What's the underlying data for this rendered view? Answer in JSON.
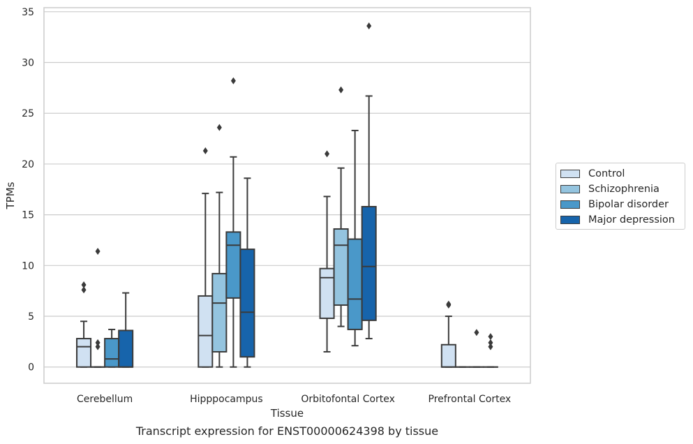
{
  "chart_data": {
    "type": "box",
    "title": "",
    "caption": "Transcript expression for ENST00000624398 by tissue",
    "xlabel": "Tissue",
    "ylabel": "TPMs",
    "ylim": [
      -1.6,
      35.4
    ],
    "yticks": [
      0,
      5,
      10,
      15,
      20,
      25,
      30,
      35
    ],
    "grid": "horizontal",
    "legend_position": "right",
    "categories": [
      "Cerebellum",
      "Hipppocampus",
      "Orbitofontal Cortex",
      "Prefrontal Cortex"
    ],
    "series": [
      {
        "name": "Control",
        "color": "#d0e1f2",
        "boxes": [
          {
            "whislo": 0,
            "q1": 0,
            "med": 2.0,
            "q3": 2.8,
            "whishi": 4.5,
            "fliers": [
              7.6,
              8.1
            ]
          },
          {
            "whislo": 0,
            "q1": 0,
            "med": 3.1,
            "q3": 7.0,
            "whishi": 17.1,
            "fliers": [
              21.3
            ]
          },
          {
            "whislo": 1.5,
            "q1": 4.8,
            "med": 8.8,
            "q3": 9.7,
            "whishi": 16.8,
            "fliers": [
              21.0
            ]
          },
          {
            "whislo": 0,
            "q1": 0,
            "med": 0,
            "q3": 2.2,
            "whishi": 5.0,
            "fliers": [
              6.1,
              6.2
            ]
          }
        ]
      },
      {
        "name": "Schizophrenia",
        "color": "#94c4df",
        "boxes": [
          {
            "whislo": 0,
            "q1": 0,
            "med": 0,
            "q3": 0,
            "whishi": 0,
            "fliers": [
              2.0,
              2.4,
              11.4
            ]
          },
          {
            "whislo": 0,
            "q1": 1.5,
            "med": 6.3,
            "q3": 9.2,
            "whishi": 17.2,
            "fliers": [
              23.6
            ]
          },
          {
            "whislo": 4.0,
            "q1": 6.1,
            "med": 12.0,
            "q3": 13.6,
            "whishi": 19.6,
            "fliers": [
              27.3
            ]
          },
          {
            "whislo": 0,
            "q1": 0,
            "med": 0,
            "q3": 0,
            "whishi": 0,
            "fliers": []
          }
        ]
      },
      {
        "name": "Bipolar disorder",
        "color": "#4a98c9",
        "boxes": [
          {
            "whislo": 0,
            "q1": 0,
            "med": 0.8,
            "q3": 2.8,
            "whishi": 3.7,
            "fliers": []
          },
          {
            "whislo": 0,
            "q1": 6.8,
            "med": 12.0,
            "q3": 13.3,
            "whishi": 20.7,
            "fliers": [
              28.2
            ]
          },
          {
            "whislo": 2.1,
            "q1": 3.7,
            "med": 6.7,
            "q3": 12.6,
            "whishi": 23.3,
            "fliers": []
          },
          {
            "whislo": 0,
            "q1": 0,
            "med": 0,
            "q3": 0,
            "whishi": 0,
            "fliers": [
              3.4
            ]
          }
        ]
      },
      {
        "name": "Major depression",
        "color": "#1764ab",
        "boxes": [
          {
            "whislo": 0,
            "q1": 0,
            "med": 0,
            "q3": 3.6,
            "whishi": 7.3,
            "fliers": []
          },
          {
            "whislo": 0,
            "q1": 1.0,
            "med": 5.4,
            "q3": 11.6,
            "whishi": 18.6,
            "fliers": []
          },
          {
            "whislo": 2.8,
            "q1": 4.6,
            "med": 9.9,
            "q3": 15.8,
            "whishi": 26.7,
            "fliers": [
              33.6
            ]
          },
          {
            "whislo": 0,
            "q1": 0,
            "med": 0,
            "q3": 0,
            "whishi": 0,
            "fliers": [
              2.0,
              2.4,
              3.0
            ]
          }
        ]
      }
    ]
  }
}
